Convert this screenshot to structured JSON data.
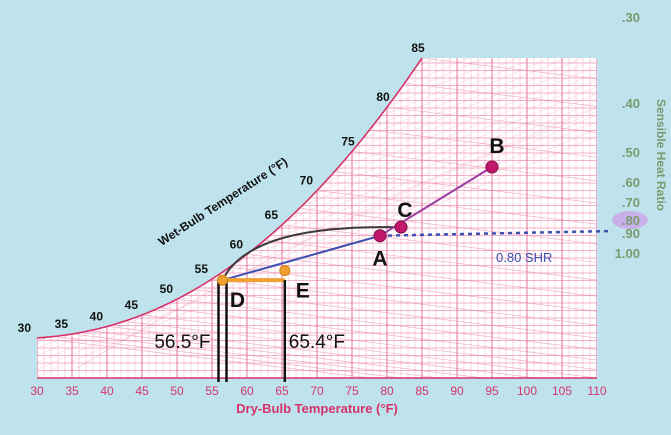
{
  "chart_data": {
    "type": "psychrometric",
    "xlabel": "Dry-Bulb Temperature (°F)",
    "xlim": [
      30,
      110
    ],
    "x_ticks": [
      "30",
      "35",
      "40",
      "45",
      "50",
      "55",
      "60",
      "65",
      "70",
      "75",
      "80",
      "85",
      "90",
      "95",
      "100",
      "105",
      "110"
    ],
    "wet_bulb": {
      "label": "Wet-Bulb Temperature (°F)",
      "ticks": [
        "30",
        "35",
        "40",
        "45",
        "50",
        "55",
        "60",
        "65",
        "70",
        "75",
        "80",
        "85"
      ]
    },
    "shr": {
      "label": "Sensible Heat Ratio",
      "ticks": [
        ".30",
        ".40",
        ".50",
        ".60",
        ".70",
        ".80",
        ".90",
        "1.00"
      ],
      "highlighted": ".80",
      "line_label": "0.80 SHR"
    },
    "points": [
      {
        "label": "A",
        "db": 79,
        "wb": 65
      },
      {
        "label": "B",
        "db": 95,
        "wb": 75
      },
      {
        "label": "C",
        "db": 82,
        "wb": 66.5
      },
      {
        "label": "D",
        "db": 56.5,
        "wb": 55
      },
      {
        "label": "E",
        "db": 65.4,
        "wb": 58
      }
    ],
    "annotations": [
      {
        "text": "56.5°F",
        "db": 56.5
      },
      {
        "text": "65.4°F",
        "db": 65.4
      }
    ],
    "colors": {
      "grid": "#e8709a",
      "saturation": "#d6336c",
      "process": "#9b3aa0",
      "shr_line": "#3d4fb0",
      "reheat": "#f0a030",
      "coil": "#3a3a3a",
      "point": "#c2186b",
      "tick_label": "#d6336c",
      "scale_label": "#7a9a70",
      "highlight": "#c9a8e8"
    }
  }
}
